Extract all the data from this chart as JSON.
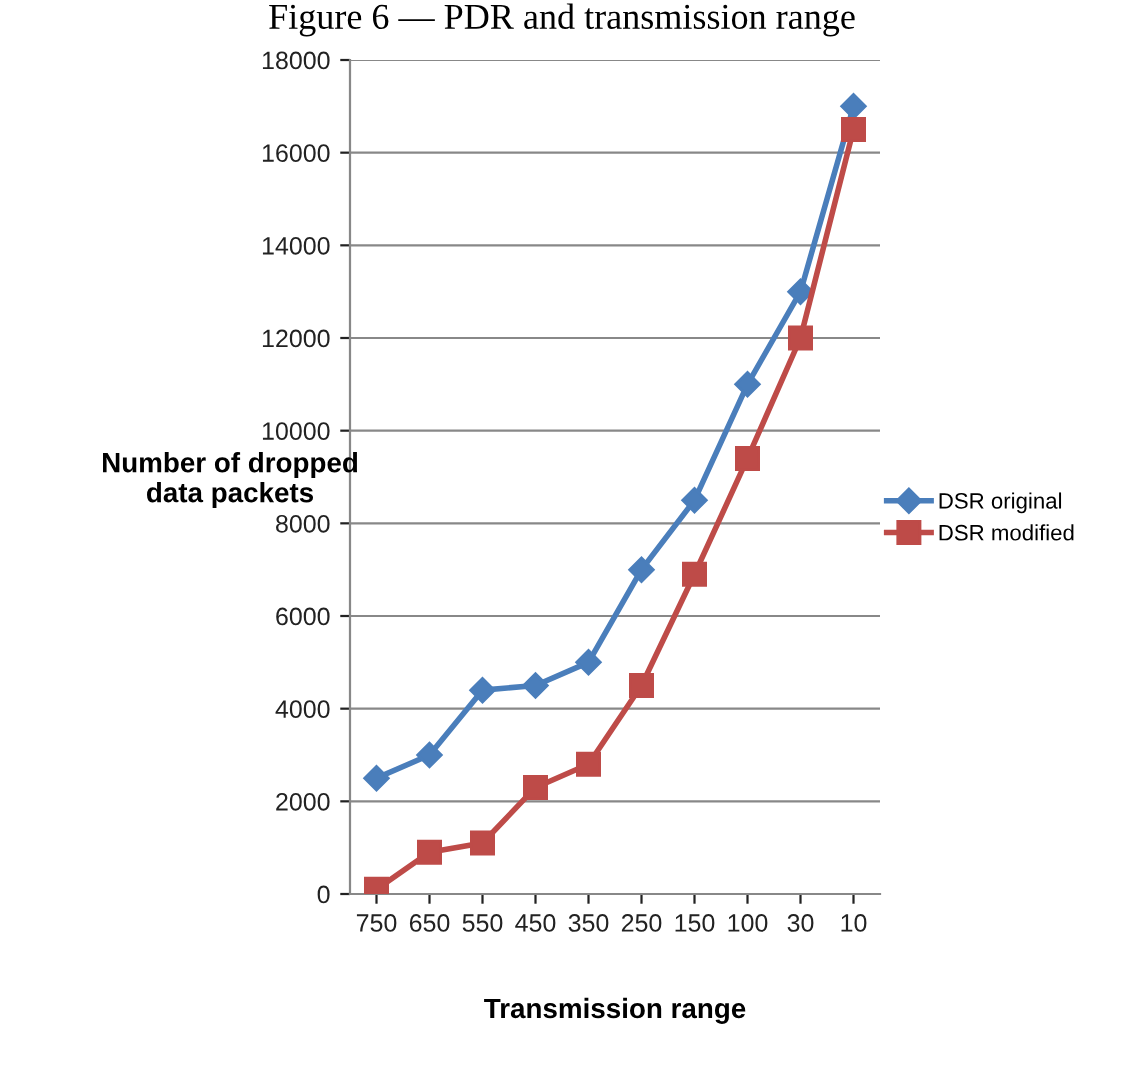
{
  "chart_data": {
    "type": "line",
    "title": "Figure 6 — PDR and transmission range",
    "xlabel": "Transmission range",
    "ylabel": "Number of dropped\ndata packets",
    "categories": [
      "750",
      "650",
      "550",
      "450",
      "350",
      "250",
      "150",
      "100",
      "30",
      "10"
    ],
    "series": [
      {
        "name": "DSR original",
        "color": "#4a7ebb",
        "marker": "diamond",
        "values": [
          2500,
          3000,
          4400,
          4500,
          5000,
          7000,
          8500,
          11000,
          13000,
          17000
        ]
      },
      {
        "name": "DSR modified",
        "color": "#be4b48",
        "marker": "square",
        "values": [
          100,
          900,
          1100,
          2300,
          2800,
          4500,
          6900,
          9400,
          12000,
          16500
        ]
      }
    ],
    "ylim": [
      0,
      18000
    ],
    "yticks": [
      0,
      2000,
      4000,
      6000,
      8000,
      10000,
      12000,
      14000,
      16000,
      18000
    ],
    "grid": "y",
    "legend": "right",
    "line_style": "solid"
  }
}
